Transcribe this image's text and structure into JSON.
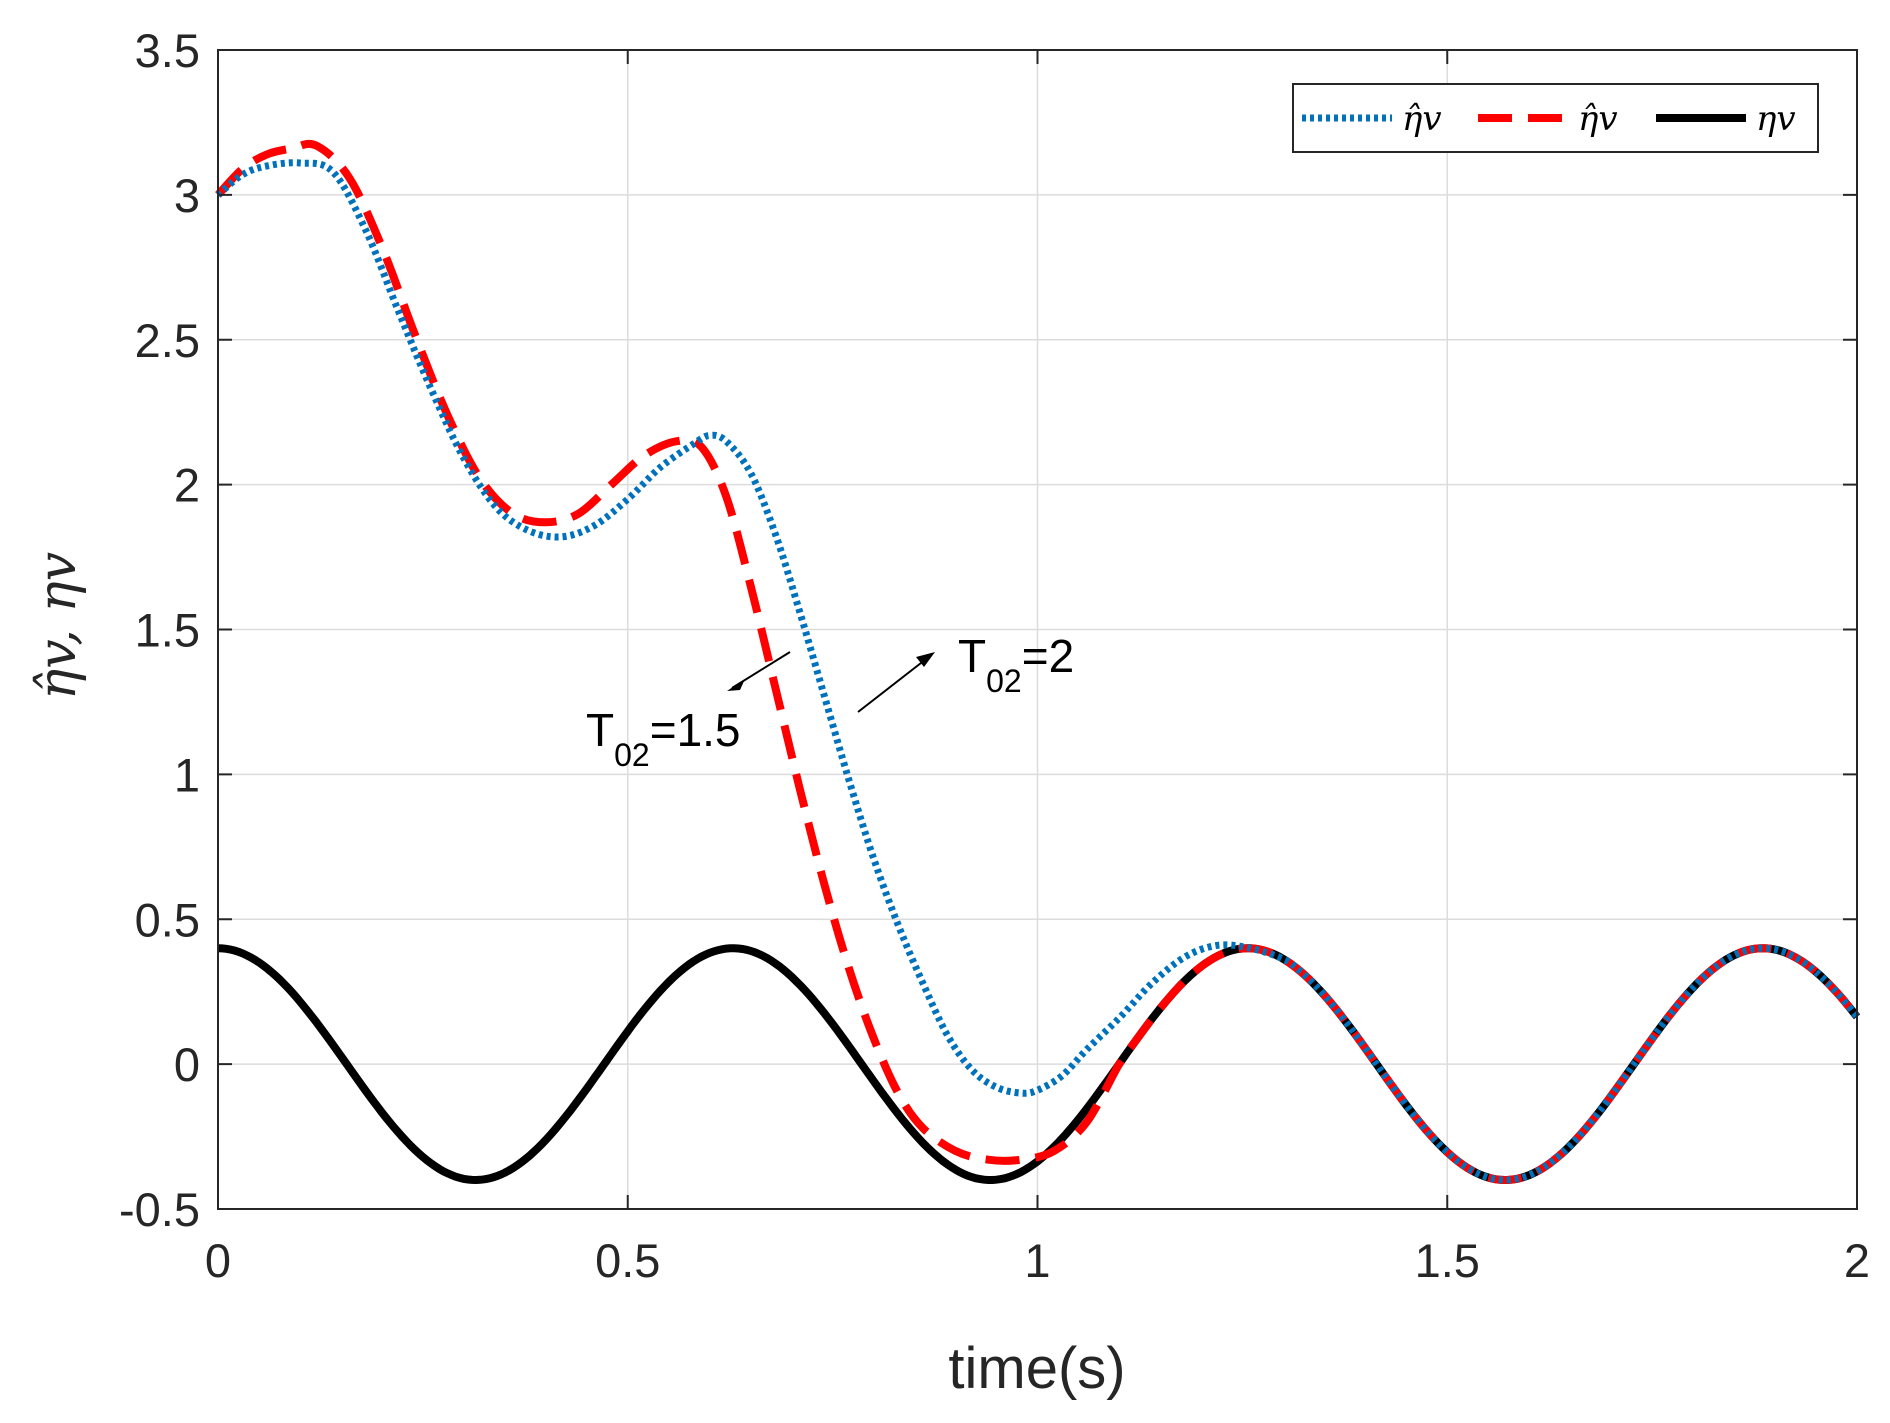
{
  "chart_data": {
    "type": "line",
    "xlabel": "time(s)",
    "ylabel": "η̂v, ηv",
    "xlim": [
      0,
      2
    ],
    "ylim": [
      -0.5,
      3.5
    ],
    "xticks": [
      0,
      0.5,
      1,
      1.5,
      2
    ],
    "yticks": [
      -0.5,
      0,
      0.5,
      1,
      1.5,
      2,
      2.5,
      3,
      3.5
    ],
    "xtick_labels": [
      "0",
      "0.5",
      "1",
      "1.5",
      "2"
    ],
    "ytick_labels": [
      "-0.5",
      "0",
      "0.5",
      "1",
      "1.5",
      "2",
      "2.5",
      "3",
      "3.5"
    ],
    "grid": true,
    "legend": {
      "position": "top-right",
      "entries": [
        {
          "label": "η̂v",
          "color": "#0072BD",
          "style": "dotted"
        },
        {
          "label": "η̂v",
          "color": "#FF0000",
          "style": "dashed"
        },
        {
          "label": "ηv",
          "color": "#000000",
          "style": "solid"
        }
      ]
    },
    "annotations": [
      {
        "text_main": "T",
        "text_sub": "02",
        "text_tail": "=2"
      },
      {
        "text_main": "T",
        "text_sub": "02",
        "text_tail": "=1.5"
      }
    ],
    "series": [
      {
        "name": "η̂v (T02=2)",
        "color": "#0072BD",
        "style": "dotted",
        "x": [
          0,
          0.03,
          0.06,
          0.1,
          0.14,
          0.18,
          0.22,
          0.26,
          0.3,
          0.34,
          0.38,
          0.42,
          0.46,
          0.5,
          0.54,
          0.58,
          0.6,
          0.62,
          0.65,
          0.68,
          0.71,
          0.74,
          0.77,
          0.8,
          0.83,
          0.86,
          0.89,
          0.92,
          0.95,
          0.98,
          1.0,
          1.03,
          1.06,
          1.1,
          1.14,
          1.18,
          1.22,
          1.26
        ],
        "y": [
          3.0,
          3.07,
          3.1,
          3.11,
          3.08,
          2.88,
          2.6,
          2.33,
          2.09,
          1.92,
          1.84,
          1.82,
          1.86,
          1.95,
          2.06,
          2.14,
          2.17,
          2.15,
          2.04,
          1.83,
          1.56,
          1.27,
          0.98,
          0.71,
          0.48,
          0.28,
          0.1,
          -0.02,
          -0.08,
          -0.1,
          -0.09,
          -0.04,
          0.05,
          0.16,
          0.28,
          0.37,
          0.41,
          0.4
        ]
      },
      {
        "name": "η̂v (T02=1.5)",
        "color": "#FF0000",
        "style": "dashed",
        "x": [
          0,
          0.03,
          0.06,
          0.09,
          0.12,
          0.16,
          0.2,
          0.24,
          0.28,
          0.32,
          0.36,
          0.4,
          0.44,
          0.48,
          0.52,
          0.56,
          0.59,
          0.62,
          0.65,
          0.68,
          0.71,
          0.74,
          0.77,
          0.8,
          0.83,
          0.86,
          0.9,
          0.94,
          0.98,
          1.02,
          1.06
        ],
        "y": [
          3.0,
          3.09,
          3.14,
          3.16,
          3.17,
          3.06,
          2.82,
          2.52,
          2.24,
          2.02,
          1.9,
          1.87,
          1.9,
          2.0,
          2.1,
          2.15,
          2.13,
          1.96,
          1.65,
          1.3,
          0.95,
          0.62,
          0.33,
          0.09,
          -0.1,
          -0.22,
          -0.3,
          -0.33,
          -0.33,
          -0.3,
          -0.2
        ]
      },
      {
        "name": "ηv",
        "color": "#000000",
        "style": "solid",
        "func": "0.4*cos(10*t)",
        "amplitude": 0.4,
        "angular_frequency": 10
      }
    ]
  }
}
